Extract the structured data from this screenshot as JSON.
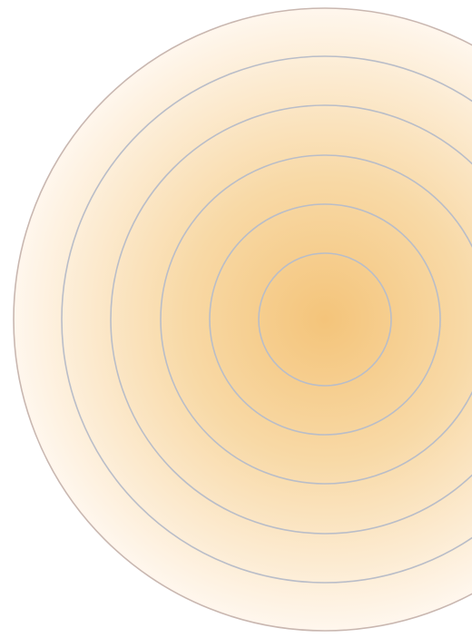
{
  "graphic": {
    "name": "concentric-rings-graphic",
    "colors": {
      "glow_center": "#F4C47A",
      "glow_mid": "#F8D9A6",
      "glow_edge": "#FFF7EE",
      "background": "#FFFFFF",
      "ring_inner": "#B9BDC8",
      "ring_outer": "#C9B7B0"
    },
    "ring_count": 6
  }
}
